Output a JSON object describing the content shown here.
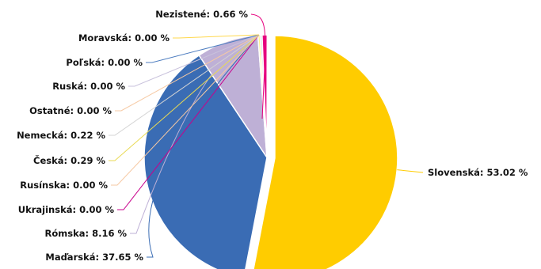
{
  "chart_data": {
    "type": "pie",
    "title": "",
    "slices": [
      {
        "name": "Slovenská",
        "value": 53.02,
        "label": "Slovenská: 53.02 %",
        "color": "#FFCC00"
      },
      {
        "name": "Maďarská",
        "value": 37.65,
        "label": "Maďarská: 37.65 %",
        "color": "#3A6CB4"
      },
      {
        "name": "Rómska",
        "value": 8.16,
        "label": "Rómska: 8.16 %",
        "color": "#BEB0D6"
      },
      {
        "name": "Ukrajinská",
        "value": 0.0,
        "label": "Ukrajinská: 0.00 %",
        "color": "#C8008C"
      },
      {
        "name": "Rusínska",
        "value": 0.0,
        "label": "Rusínska: 0.00 %",
        "color": "#F6C9A3"
      },
      {
        "name": "Česká",
        "value": 0.29,
        "label": "Česká: 0.29 %",
        "color": "#FFF48C"
      },
      {
        "name": "Nemecká",
        "value": 0.22,
        "label": "Nemecká: 0.22 %",
        "color": "#D4D4D4"
      },
      {
        "name": "Ostatné",
        "value": 0.0,
        "label": "Ostatné: 0.00 %",
        "color": "#F6C9A3"
      },
      {
        "name": "Ruská",
        "value": 0.0,
        "label": "Ruská: 0.00 %",
        "color": "#C9C2DC"
      },
      {
        "name": "Poľská",
        "value": 0.0,
        "label": "Poľská: 0.00 %",
        "color": "#4F7EC0"
      },
      {
        "name": "Moravská",
        "value": 0.0,
        "label": "Moravská: 0.00 %",
        "color": "#FFD84D"
      },
      {
        "name": "Nezistené",
        "value": 0.66,
        "label": "Nezistené: 0.66 %",
        "color": "#E6007E"
      }
    ],
    "exploded_slice": "Slovenská",
    "legend": "none",
    "data_labels": "outside-with-leader-lines"
  }
}
